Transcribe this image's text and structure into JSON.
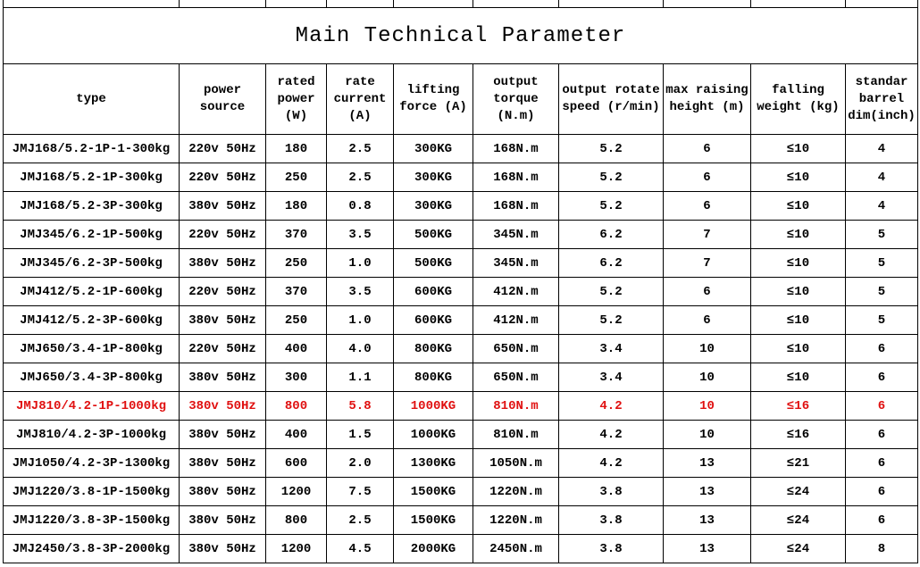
{
  "table": {
    "title": "Main Technical Parameter",
    "header": [
      "type",
      "power source",
      "rated power (W)",
      "rate current (A)",
      "lifting force (A)",
      "output torque (N.m)",
      "output rotate speed (r/min)",
      "max raising height (m)",
      "falling weight (kg)",
      "standar barrel dim(inch)"
    ],
    "rows": [
      [
        "JMJ168/5.2-1P-1-300kg",
        "220v 50Hz",
        "180",
        "2.5",
        "300KG",
        "168N.m",
        "5.2",
        "6",
        "≤10",
        "4"
      ],
      [
        "JMJ168/5.2-1P-300kg",
        "220v 50Hz",
        "250",
        "2.5",
        "300KG",
        "168N.m",
        "5.2",
        "6",
        "≤10",
        "4"
      ],
      [
        "JMJ168/5.2-3P-300kg",
        "380v 50Hz",
        "180",
        "0.8",
        "300KG",
        "168N.m",
        "5.2",
        "6",
        "≤10",
        "4"
      ],
      [
        "JMJ345/6.2-1P-500kg",
        "220v 50Hz",
        "370",
        "3.5",
        "500KG",
        "345N.m",
        "6.2",
        "7",
        "≤10",
        "5"
      ],
      [
        "JMJ345/6.2-3P-500kg",
        "380v 50Hz",
        "250",
        "1.0",
        "500KG",
        "345N.m",
        "6.2",
        "7",
        "≤10",
        "5"
      ],
      [
        "JMJ412/5.2-1P-600kg",
        "220v 50Hz",
        "370",
        "3.5",
        "600KG",
        "412N.m",
        "5.2",
        "6",
        "≤10",
        "5"
      ],
      [
        "JMJ412/5.2-3P-600kg",
        "380v 50Hz",
        "250",
        "1.0",
        "600KG",
        "412N.m",
        "5.2",
        "6",
        "≤10",
        "5"
      ],
      [
        "JMJ650/3.4-1P-800kg",
        "220v 50Hz",
        "400",
        "4.0",
        "800KG",
        "650N.m",
        "3.4",
        "10",
        "≤10",
        "6"
      ],
      [
        "JMJ650/3.4-3P-800kg",
        "380v 50Hz",
        "300",
        "1.1",
        "800KG",
        "650N.m",
        "3.4",
        "10",
        "≤10",
        "6"
      ],
      [
        "JMJ810/4.2-1P-1000kg",
        "380v 50Hz",
        "800",
        "5.8",
        "1000KG",
        "810N.m",
        "4.2",
        "10",
        "≤16",
        "6"
      ],
      [
        "JMJ810/4.2-3P-1000kg",
        "380v 50Hz",
        "400",
        "1.5",
        "1000KG",
        "810N.m",
        "4.2",
        "10",
        "≤16",
        "6"
      ],
      [
        "JMJ1050/4.2-3P-1300kg",
        "380v 50Hz",
        "600",
        "2.0",
        "1300KG",
        "1050N.m",
        "4.2",
        "13",
        "≤21",
        "6"
      ],
      [
        "JMJ1220/3.8-1P-1500kg",
        "380v 50Hz",
        "1200",
        "7.5",
        "1500KG",
        "1220N.m",
        "3.8",
        "13",
        "≤24",
        "6"
      ],
      [
        "JMJ1220/3.8-3P-1500kg",
        "380v 50Hz",
        "800",
        "2.5",
        "1500KG",
        "1220N.m",
        "3.8",
        "13",
        "≤24",
        "6"
      ],
      [
        "JMJ2450/3.8-3P-2000kg",
        "380v 50Hz",
        "1200",
        "4.5",
        "2000KG",
        "2450N.m",
        "3.8",
        "13",
        "≤24",
        "8"
      ]
    ]
  }
}
